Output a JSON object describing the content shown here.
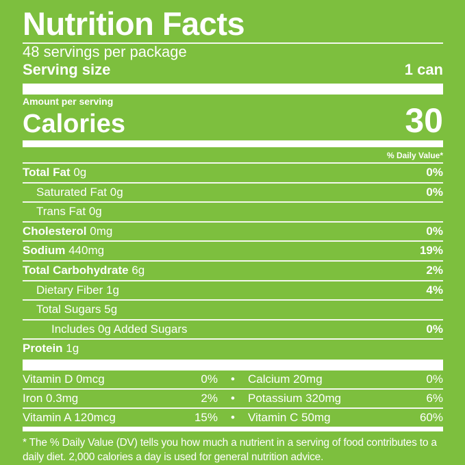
{
  "title": "Nutrition Facts",
  "servings_per_package": "48 servings per package",
  "serving_size": {
    "label": "Serving size",
    "value": "1 can"
  },
  "amount_per_serving": "Amount per serving",
  "calories": {
    "label": "Calories",
    "value": "30"
  },
  "daily_value_header": "% Daily Value*",
  "nutrients": [
    {
      "name": "Total Fat",
      "amount": "0g",
      "dv": "0%"
    },
    {
      "name": "Saturated Fat",
      "amount": "0g",
      "dv": "0%"
    },
    {
      "name": "Trans Fat",
      "amount": "0g",
      "dv": ""
    },
    {
      "name": "Cholesterol",
      "amount": "0mg",
      "dv": "0%"
    },
    {
      "name": "Sodium",
      "amount": "440mg",
      "dv": "19%"
    },
    {
      "name": "Total Carbohydrate",
      "amount": "6g",
      "dv": "2%"
    },
    {
      "name": "Dietary Fiber",
      "amount": "1g",
      "dv": "4%"
    },
    {
      "name": "Total Sugars",
      "amount": "5g",
      "dv": ""
    },
    {
      "name": "Includes 0g Added Sugars",
      "amount": "",
      "dv": "0%"
    },
    {
      "name": "Protein",
      "amount": "1g",
      "dv": ""
    }
  ],
  "vitamins": [
    {
      "left": {
        "name": "Vitamin D 0mcg",
        "dv": "0%"
      },
      "right": {
        "name": "Calcium 20mg",
        "dv": "0%"
      }
    },
    {
      "left": {
        "name": "Iron 0.3mg",
        "dv": "2%"
      },
      "right": {
        "name": "Potassium 320mg",
        "dv": "6%"
      }
    },
    {
      "left": {
        "name": "Vitamin A 120mcg",
        "dv": "15%"
      },
      "right": {
        "name": "Vitamin C 50mg",
        "dv": "60%"
      }
    }
  ],
  "bullet": "•",
  "footnote": "* The % Daily Value (DV) tells you how much a nutrient in a serving of food contributes to a daily diet. 2,000 calories a day is used for general nutrition advice.",
  "colors": {
    "background": "#7dbf3e",
    "text": "#ffffff"
  }
}
